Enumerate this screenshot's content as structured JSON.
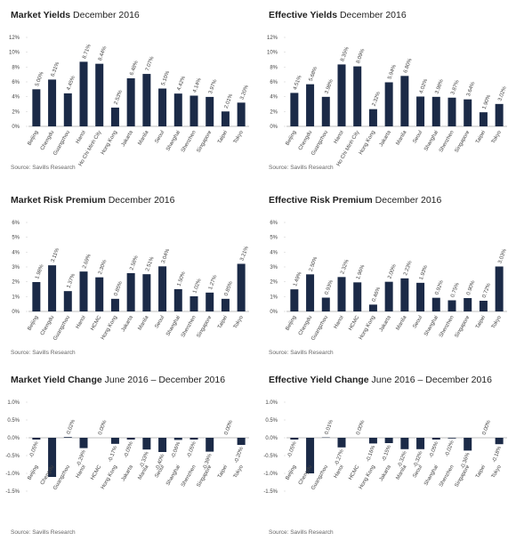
{
  "chart_data": [
    {
      "type": "bar",
      "title": "Market Yields",
      "subtitle": "December 2016",
      "source": "Source: Savills Research",
      "color": "#1b2a47",
      "categories": [
        "Beijing",
        "Chengdu",
        "Guangzhou",
        "Hanoi",
        "Ho Chi Minh City",
        "Hong Kong",
        "Jakarta",
        "Manila",
        "Seoul",
        "Shanghai",
        "Shenzhen",
        "Singapore",
        "Taipei",
        "Tokyo"
      ],
      "values": [
        5.0,
        6.31,
        4.45,
        8.71,
        8.44,
        2.53,
        6.48,
        7.07,
        5.1,
        4.42,
        4.14,
        3.97,
        2.01,
        3.2
      ],
      "value_labels": [
        "5.00%",
        "6.31%",
        "4.45%",
        "8.71%",
        "8.44%",
        "2.53%",
        "6.48%",
        "7.07%",
        "5.10%",
        "4.42%",
        "4.14%",
        "3.97%",
        "2.01%",
        "3.20%"
      ],
      "ylim": [
        0,
        12
      ],
      "yticks": [
        {
          "value": 0,
          "label": "0%"
        },
        {
          "value": 2,
          "label": "2%"
        },
        {
          "value": 4,
          "label": "4%"
        },
        {
          "value": 6,
          "label": "6%"
        },
        {
          "value": 8,
          "label": "8%"
        },
        {
          "value": 10,
          "label": "10%"
        },
        {
          "value": 12,
          "label": "12%"
        }
      ]
    },
    {
      "type": "bar",
      "title": "Effective Yields",
      "subtitle": "December 2016",
      "source": "Source: Savills Research",
      "color": "#1b2a47",
      "categories": [
        "Beijing",
        "Chengdu",
        "Guangzhou",
        "Hanoi",
        "Ho Chi Minh City",
        "Hong Kong",
        "Jakarta",
        "Manila",
        "Seoul",
        "Shanghai",
        "Shenzhen",
        "Singapore",
        "Taipei",
        "Tokyo"
      ],
      "values": [
        4.51,
        5.68,
        3.98,
        8.35,
        8.09,
        2.32,
        5.94,
        6.8,
        4.02,
        3.98,
        3.87,
        3.64,
        1.9,
        3.02
      ],
      "value_labels": [
        "4.51%",
        "5.68%",
        "3.98%",
        "8.35%",
        "8.09%",
        "2.32%",
        "5.94%",
        "6.80%",
        "4.02%",
        "3.98%",
        "3.87%",
        "3.64%",
        "1.90%",
        "3.02%"
      ],
      "ylim": [
        0,
        12
      ],
      "yticks": [
        {
          "value": 0,
          "label": "0%"
        },
        {
          "value": 2,
          "label": "2%"
        },
        {
          "value": 4,
          "label": "4%"
        },
        {
          "value": 6,
          "label": "6%"
        },
        {
          "value": 8,
          "label": "8%"
        },
        {
          "value": 10,
          "label": "10%"
        },
        {
          "value": 12,
          "label": "12%"
        }
      ]
    },
    {
      "type": "bar",
      "title": "Market Risk Premium",
      "subtitle": "December 2016",
      "source": "Source: Savills Research",
      "color": "#1b2a47",
      "categories": [
        "Beijing",
        "Chengdu",
        "Guangzhou",
        "Hanoi",
        "HCMC",
        "Hong Kong",
        "Jakarta",
        "Manila",
        "Seoul",
        "Shanghai",
        "Shenzhen",
        "Singapore",
        "Taipei",
        "Tokyo"
      ],
      "values": [
        1.98,
        3.11,
        1.37,
        2.69,
        2.3,
        0.85,
        2.58,
        2.51,
        3.04,
        1.5,
        1.02,
        1.27,
        0.85,
        3.21
      ],
      "value_labels": [
        "1.98%",
        "3.11%",
        "1.37%",
        "2.69%",
        "2.30%",
        "0.85%",
        "2.58%",
        "2.51%",
        "3.04%",
        "1.50%",
        "1.02%",
        "1.27%",
        "0.85%",
        "3.21%"
      ],
      "ylim": [
        0,
        6
      ],
      "yticks": [
        {
          "value": 0,
          "label": "0%"
        },
        {
          "value": 1,
          "label": "1%"
        },
        {
          "value": 2,
          "label": "2%"
        },
        {
          "value": 3,
          "label": "3%"
        },
        {
          "value": 4,
          "label": "4%"
        },
        {
          "value": 5,
          "label": "5%"
        },
        {
          "value": 6,
          "label": "6%"
        }
      ]
    },
    {
      "type": "bar",
      "title": "Effective Risk Premium",
      "subtitle": "December 2016",
      "source": "Source: Savills Research",
      "color": "#1b2a47",
      "categories": [
        "Beijing",
        "Chengdu",
        "Guangzhou",
        "Hanoi",
        "HCMC",
        "Hong Kong",
        "Jakarta",
        "Manila",
        "Seoul",
        "Shanghai",
        "Shenzhen",
        "Singapore",
        "Taipei",
        "Tokyo"
      ],
      "values": [
        1.49,
        2.5,
        0.93,
        2.32,
        1.96,
        0.46,
        2.0,
        2.23,
        1.93,
        0.92,
        0.75,
        0.9,
        0.72,
        3.03
      ],
      "value_labels": [
        "1.49%",
        "2.50%",
        "0.93%",
        "2.32%",
        "1.96%",
        "0.46%",
        "2.00%",
        "2.23%",
        "1.93%",
        "0.92%",
        "0.75%",
        "0.90%",
        "0.72%",
        "3.03%"
      ],
      "ylim": [
        0,
        6
      ],
      "yticks": [
        {
          "value": 0,
          "label": "0%"
        },
        {
          "value": 1,
          "label": "1%"
        },
        {
          "value": 2,
          "label": "2%"
        },
        {
          "value": 3,
          "label": "3%"
        },
        {
          "value": 4,
          "label": "4%"
        },
        {
          "value": 5,
          "label": "5%"
        },
        {
          "value": 6,
          "label": "6%"
        }
      ]
    },
    {
      "type": "bar",
      "title": "Market Yield Change",
      "subtitle": "June 2016 – December 2016",
      "source": "Source: Savills Research",
      "color": "#1b2a47",
      "categories": [
        "Beijing",
        "Chengdu",
        "Guangzhou",
        "Hanoi",
        "HCMC",
        "Hong Kong",
        "Jakarta",
        "Manila",
        "Seoul",
        "Shanghai",
        "Shenzhen",
        "Singapore",
        "Taipei",
        "Tokyo"
      ],
      "values": [
        -0.05,
        -1.1,
        0.02,
        -0.29,
        0.0,
        -0.17,
        -0.05,
        -0.33,
        -0.4,
        -0.06,
        -0.05,
        -0.39,
        0.0,
        -0.2
      ],
      "value_labels": [
        "-0.05%",
        null,
        "0.02%",
        "-0.29%",
        "0.00%",
        "-0.17%",
        "-0.05%",
        "-0.33%",
        "-0.40%",
        "-0.06%",
        "-0.05%",
        "-0.39%",
        "0.00%",
        "-0.20%"
      ],
      "ylim": [
        -1.5,
        1.0
      ],
      "yticks": [
        {
          "value": -1.5,
          "label": "-1.5%"
        },
        {
          "value": -1.0,
          "label": "-1.0%"
        },
        {
          "value": -0.5,
          "label": "-0.5%"
        },
        {
          "value": 0,
          "label": "0.0%"
        },
        {
          "value": 0.5,
          "label": "0.5%"
        },
        {
          "value": 1.0,
          "label": "1.0%"
        }
      ]
    },
    {
      "type": "bar",
      "title": "Effective Yield Change",
      "subtitle": "June 2016 – December 2016",
      "source": "Source: Savills Research",
      "color": "#1b2a47",
      "categories": [
        "Beijing",
        "Chengdu",
        "Guangzhou",
        "Hanoi",
        "HCMC",
        "Hong Kong",
        "Jakarta",
        "Manila",
        "Seoul",
        "Shanghai",
        "Shenzhen",
        "Singapore",
        "Taipei",
        "Tokyo"
      ],
      "values": [
        -0.05,
        -1.0,
        0.01,
        -0.27,
        0.0,
        -0.16,
        -0.15,
        -0.32,
        -0.32,
        -0.05,
        -0.02,
        -0.36,
        0.0,
        -0.18
      ],
      "value_labels": [
        "-0.05%",
        null,
        "0.01%",
        "-0.27%",
        "0.00%",
        "-0.16%",
        "-0.15%",
        "-0.32%",
        "-0.32%",
        "-0.05%",
        "-0.02%",
        "-0.36%",
        "0.00%",
        "-0.18%"
      ],
      "ylim": [
        -1.5,
        1.0
      ],
      "yticks": [
        {
          "value": -1.5,
          "label": "-1.5%"
        },
        {
          "value": -1.0,
          "label": "-1.0%"
        },
        {
          "value": -0.5,
          "label": "-0.5%"
        },
        {
          "value": 0,
          "label": "0.0%"
        },
        {
          "value": 0.5,
          "label": "0.5%"
        },
        {
          "value": 1.0,
          "label": "1.0%"
        }
      ]
    }
  ]
}
